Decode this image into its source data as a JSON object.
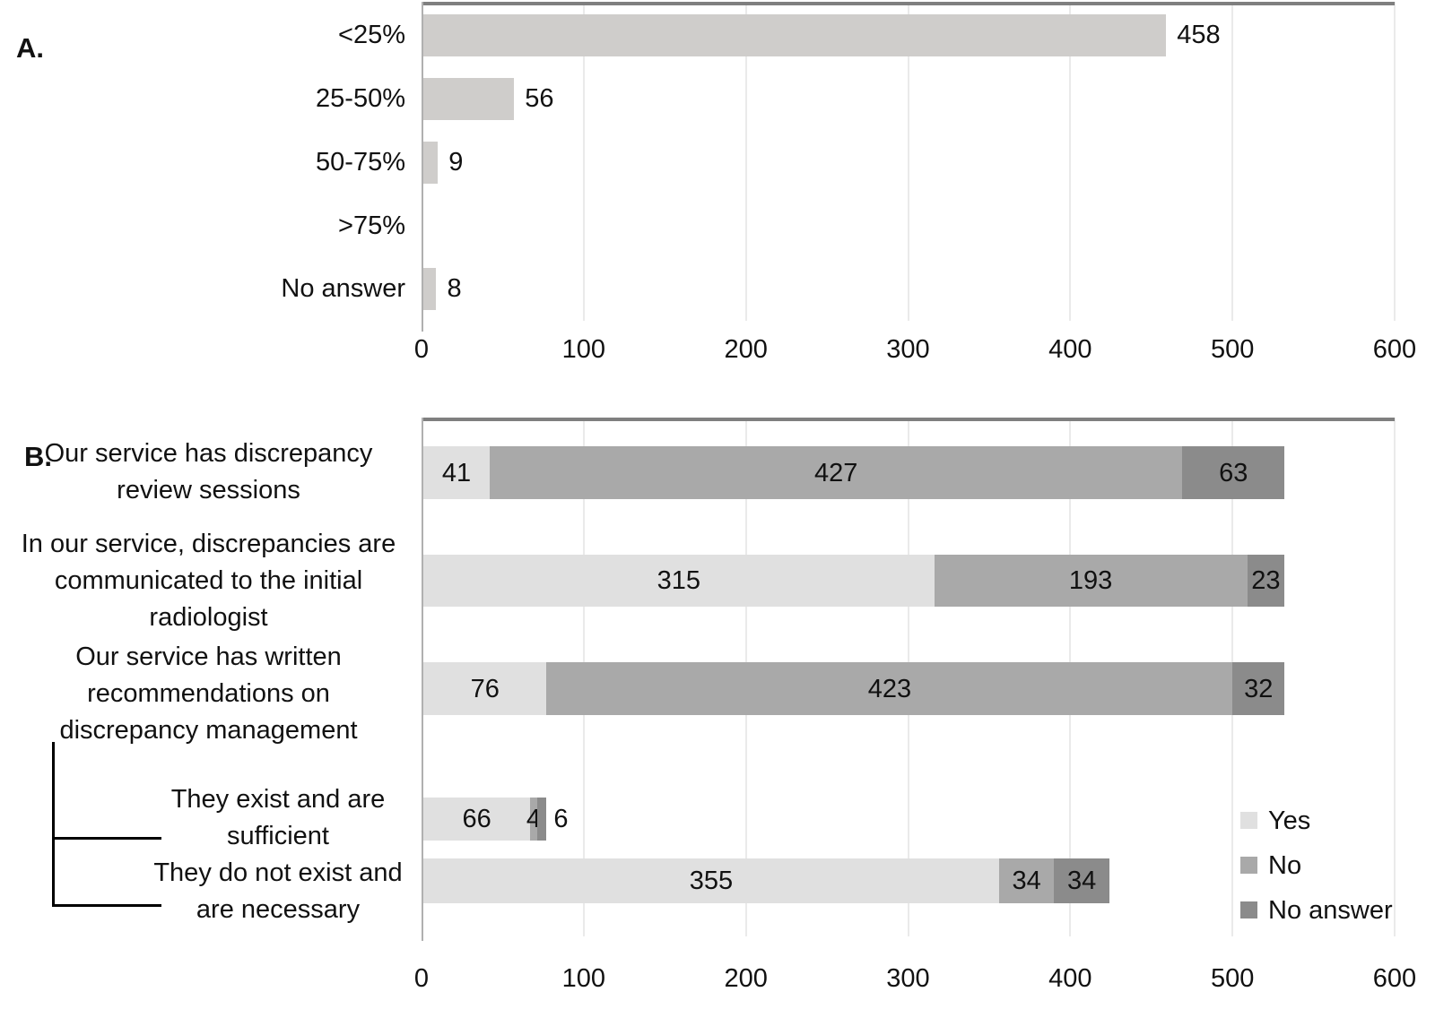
{
  "panels": {
    "a": {
      "label": "A."
    },
    "b": {
      "label": "B."
    }
  },
  "colors": {
    "plot_top_border": "#7f7f7f",
    "axis_line": "#b0b0b0",
    "gridline": "#eaeaea",
    "bracket": "#000000"
  },
  "chart_data": [
    {
      "id": "A",
      "type": "bar",
      "orientation": "horizontal",
      "categories": [
        "<25%",
        "25-50%",
        "50-75%",
        ">75%",
        "No answer"
      ],
      "values": [
        458,
        56,
        9,
        0,
        8
      ],
      "bar_color": "#cfcdcb",
      "xlim": [
        0,
        600
      ],
      "xticks": [
        0,
        100,
        200,
        300,
        400,
        500,
        600
      ],
      "grid": true,
      "legend": null
    },
    {
      "id": "B",
      "type": "stacked-bar",
      "orientation": "horizontal",
      "categories": [
        "Our service has discrepancy\nreview sessions",
        "In our service, discrepancies are\ncommunicated to the initial\nradiologist",
        "Our service has written\nrecommendations on\ndiscrepancy management",
        "They exist and are\nsufficient",
        "They do not exist and\nare necessary"
      ],
      "series": [
        {
          "name": "Yes",
          "color": "#e0e0e0",
          "values": [
            41,
            315,
            76,
            66,
            355
          ]
        },
        {
          "name": "No",
          "color": "#a9a9a9",
          "values": [
            427,
            193,
            423,
            4,
            34
          ]
        },
        {
          "name": "No answer",
          "color": "#8b8b8b",
          "values": [
            63,
            23,
            32,
            6,
            34
          ]
        }
      ],
      "xlim": [
        0,
        600
      ],
      "xticks": [
        0,
        100,
        200,
        300,
        400,
        500,
        600
      ],
      "grid": true,
      "legend": {
        "position": "inside-right",
        "entries": [
          "Yes",
          "No",
          "No answer"
        ]
      }
    }
  ]
}
